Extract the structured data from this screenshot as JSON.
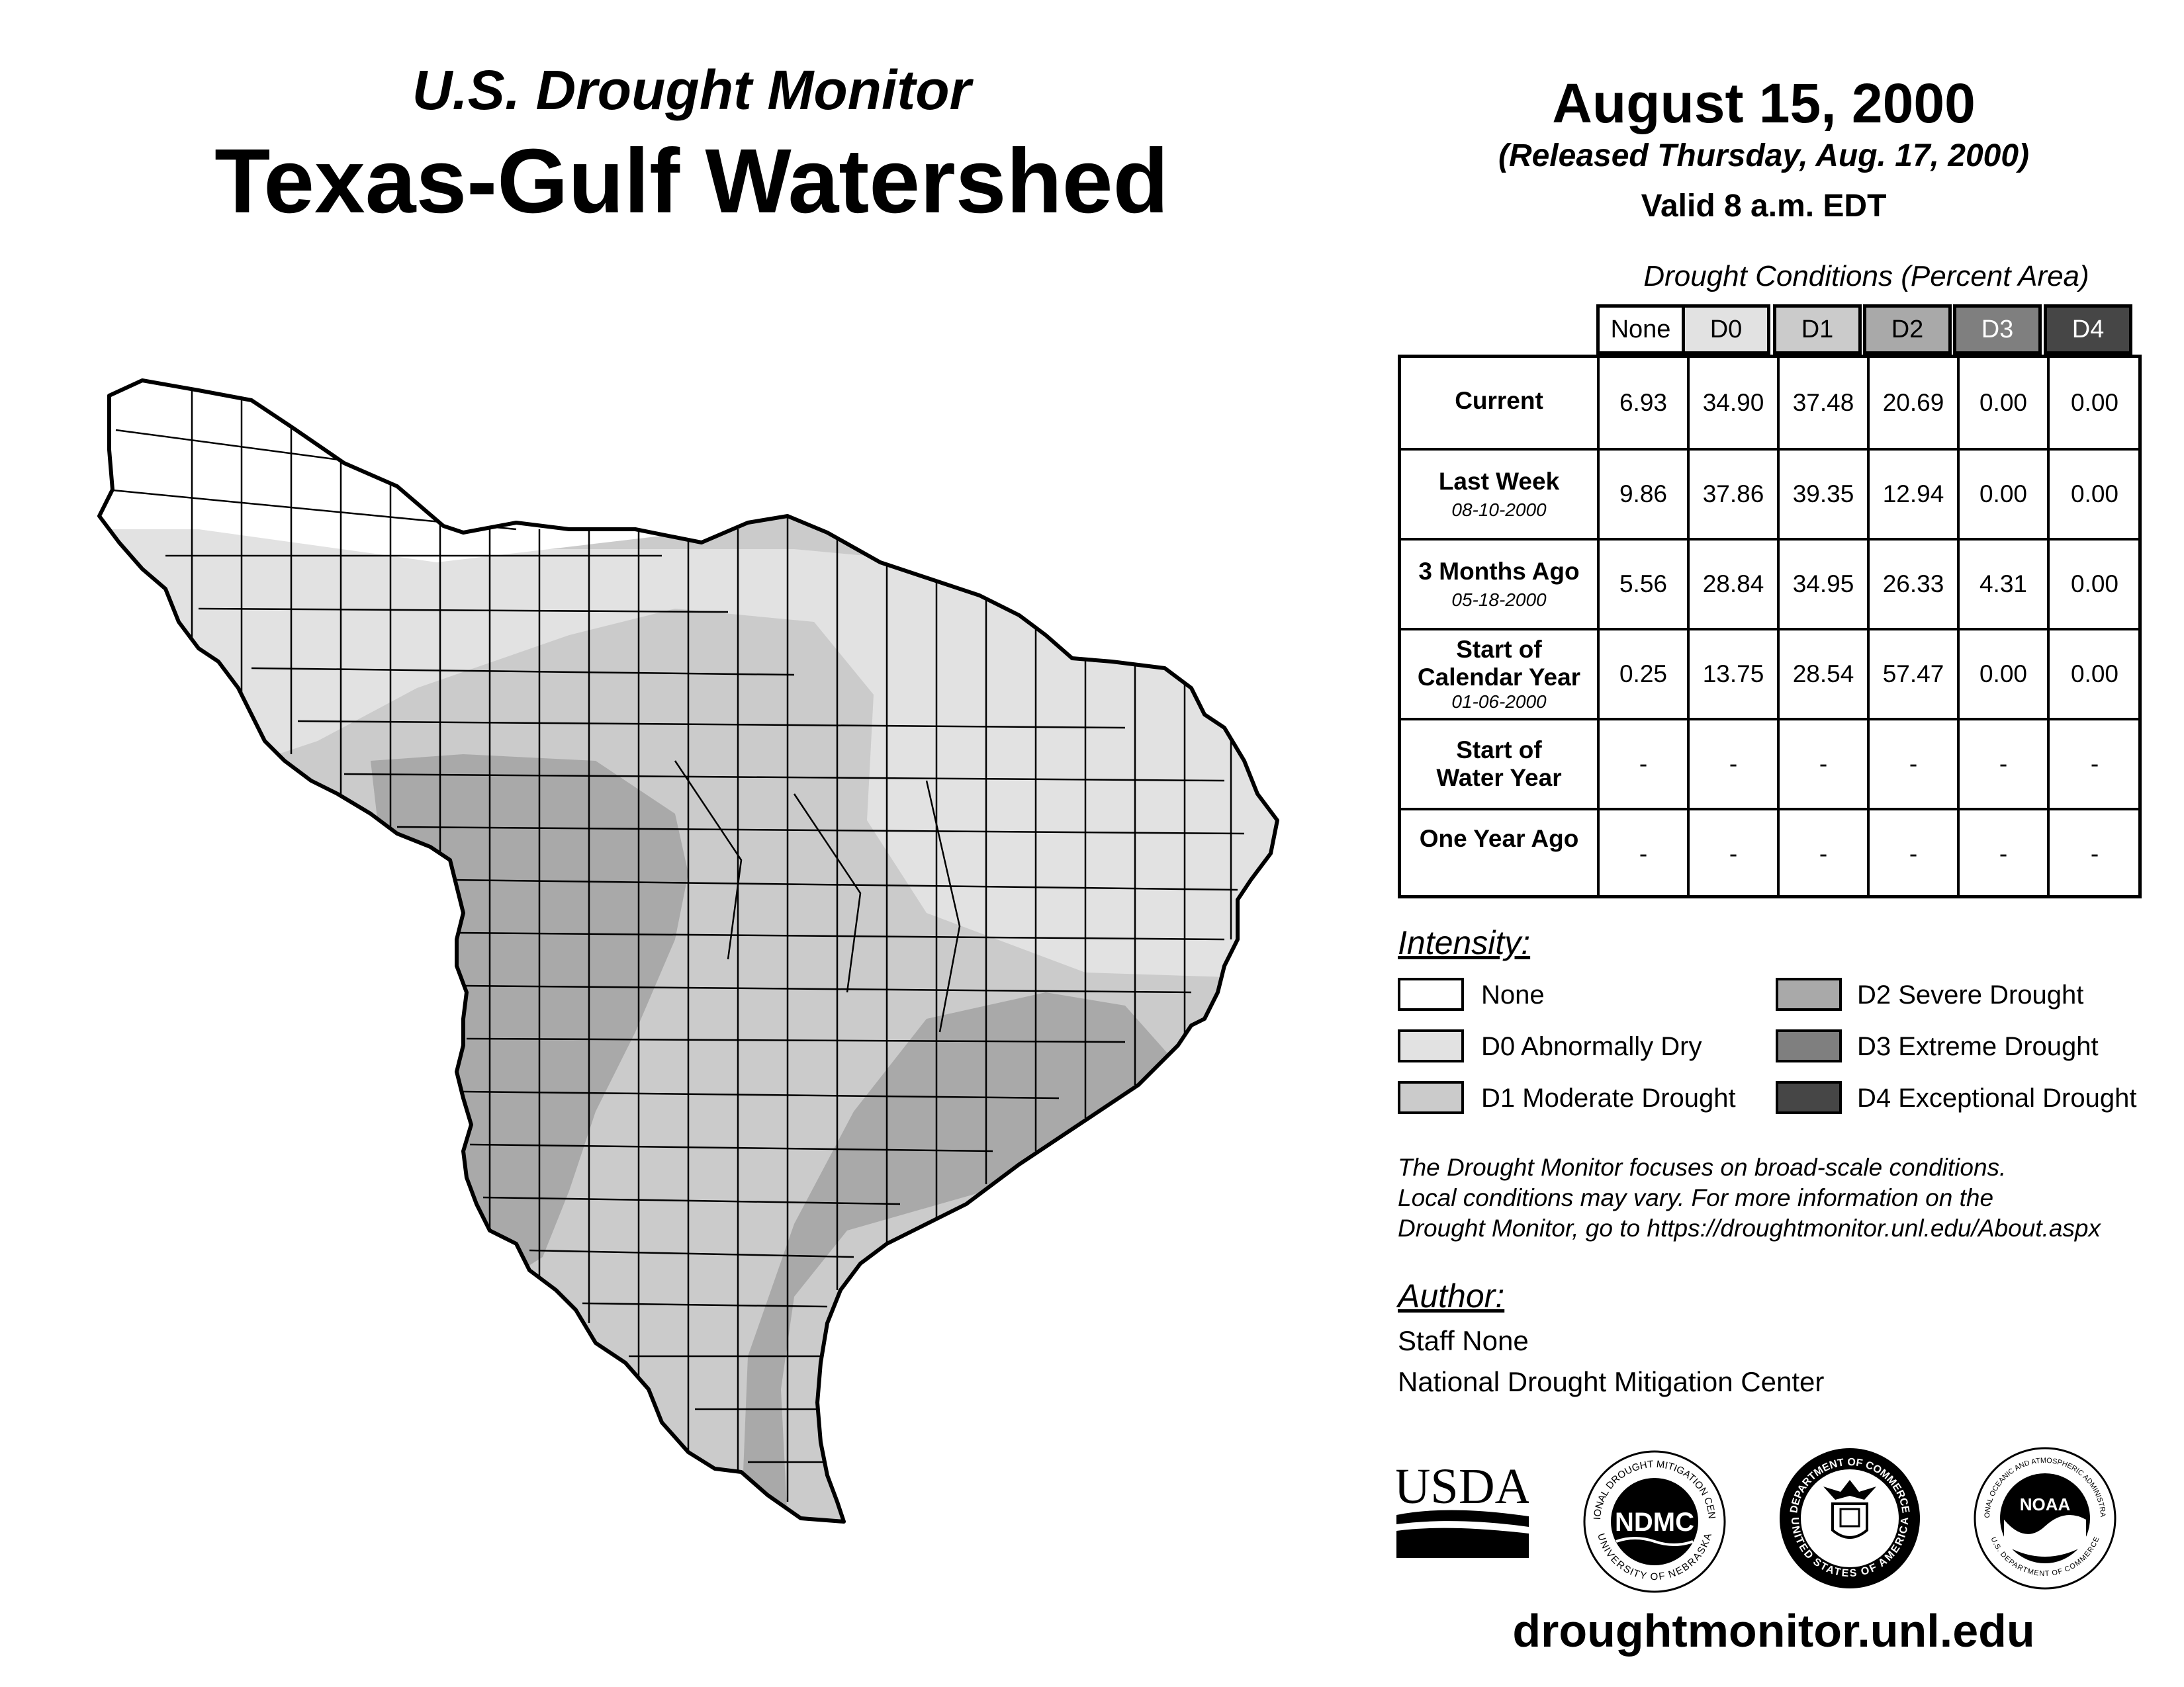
{
  "header": {
    "subtitle": "U.S. Drought Monitor",
    "title": "Texas-Gulf Watershed",
    "map_date": "August 15, 2000",
    "released": "(Released Thursday, Aug. 17, 2000)",
    "valid": "Valid 8 a.m. EDT"
  },
  "stats": {
    "caption": "Drought Conditions (Percent Area)",
    "columns": [
      "None",
      "D0",
      "D1",
      "D2",
      "D3",
      "D4"
    ],
    "column_colors": [
      "#ffffff",
      "#e2e2e2",
      "#cbcbcb",
      "#a9a9a9",
      "#7f7f7f",
      "#464646"
    ],
    "rows": [
      {
        "label": "Current",
        "date": "",
        "values": [
          "6.93",
          "34.90",
          "37.48",
          "20.69",
          "0.00",
          "0.00"
        ]
      },
      {
        "label": "Last Week",
        "date": "08-10-2000",
        "values": [
          "9.86",
          "37.86",
          "39.35",
          "12.94",
          "0.00",
          "0.00"
        ]
      },
      {
        "label": "3 Months Ago",
        "date": "05-18-2000",
        "values": [
          "5.56",
          "28.84",
          "34.95",
          "26.33",
          "4.31",
          "0.00"
        ]
      },
      {
        "label": "Start of\nCalendar Year",
        "date": "01-06-2000",
        "values": [
          "0.25",
          "13.75",
          "28.54",
          "57.47",
          "0.00",
          "0.00"
        ]
      },
      {
        "label": "Start of\nWater Year",
        "date": "",
        "values": [
          "-",
          "-",
          "-",
          "-",
          "-",
          "-"
        ]
      },
      {
        "label": "One Year Ago",
        "date": "",
        "values": [
          "-",
          "-",
          "-",
          "-",
          "-",
          "-"
        ]
      }
    ]
  },
  "legend": {
    "title": "Intensity:",
    "items": [
      {
        "label": "None",
        "color": "#ffffff"
      },
      {
        "label": "D0 Abnormally Dry",
        "color": "#e2e2e2"
      },
      {
        "label": "D1 Moderate Drought",
        "color": "#cbcbcb"
      },
      {
        "label": "D2 Severe Drought",
        "color": "#a9a9a9"
      },
      {
        "label": "D3 Extreme Drought",
        "color": "#7f7f7f"
      },
      {
        "label": "D4 Exceptional Drought",
        "color": "#464646"
      }
    ]
  },
  "note": {
    "line1": "The Drought Monitor focuses on broad-scale conditions.",
    "line2": "Local conditions may vary. For more information on the",
    "line3": "Drought Monitor, go to https://droughtmonitor.unl.edu/About.aspx"
  },
  "author": {
    "title": "Author:",
    "name": "Staff None",
    "org": "National Drought Mitigation Center"
  },
  "logos": {
    "usda": "USDA",
    "ndmc": "NDMC",
    "ndmc_ring_top": "NATIONAL DROUGHT MITIGATION CENTER",
    "ndmc_ring_bottom": "UNIVERSITY OF NEBRASKA",
    "doc_ring_top": "DEPARTMENT OF COMMERCE",
    "doc_ring_bottom": "UNITED STATES OF AMERICA",
    "noaa": "NOAA",
    "noaa_ring_top": "NATIONAL OCEANIC AND ATMOSPHERIC ADMINISTRATION",
    "noaa_ring_bottom": "U.S. DEPARTMENT OF COMMERCE"
  },
  "footer": {
    "website": "droughtmonitor.unl.edu"
  }
}
